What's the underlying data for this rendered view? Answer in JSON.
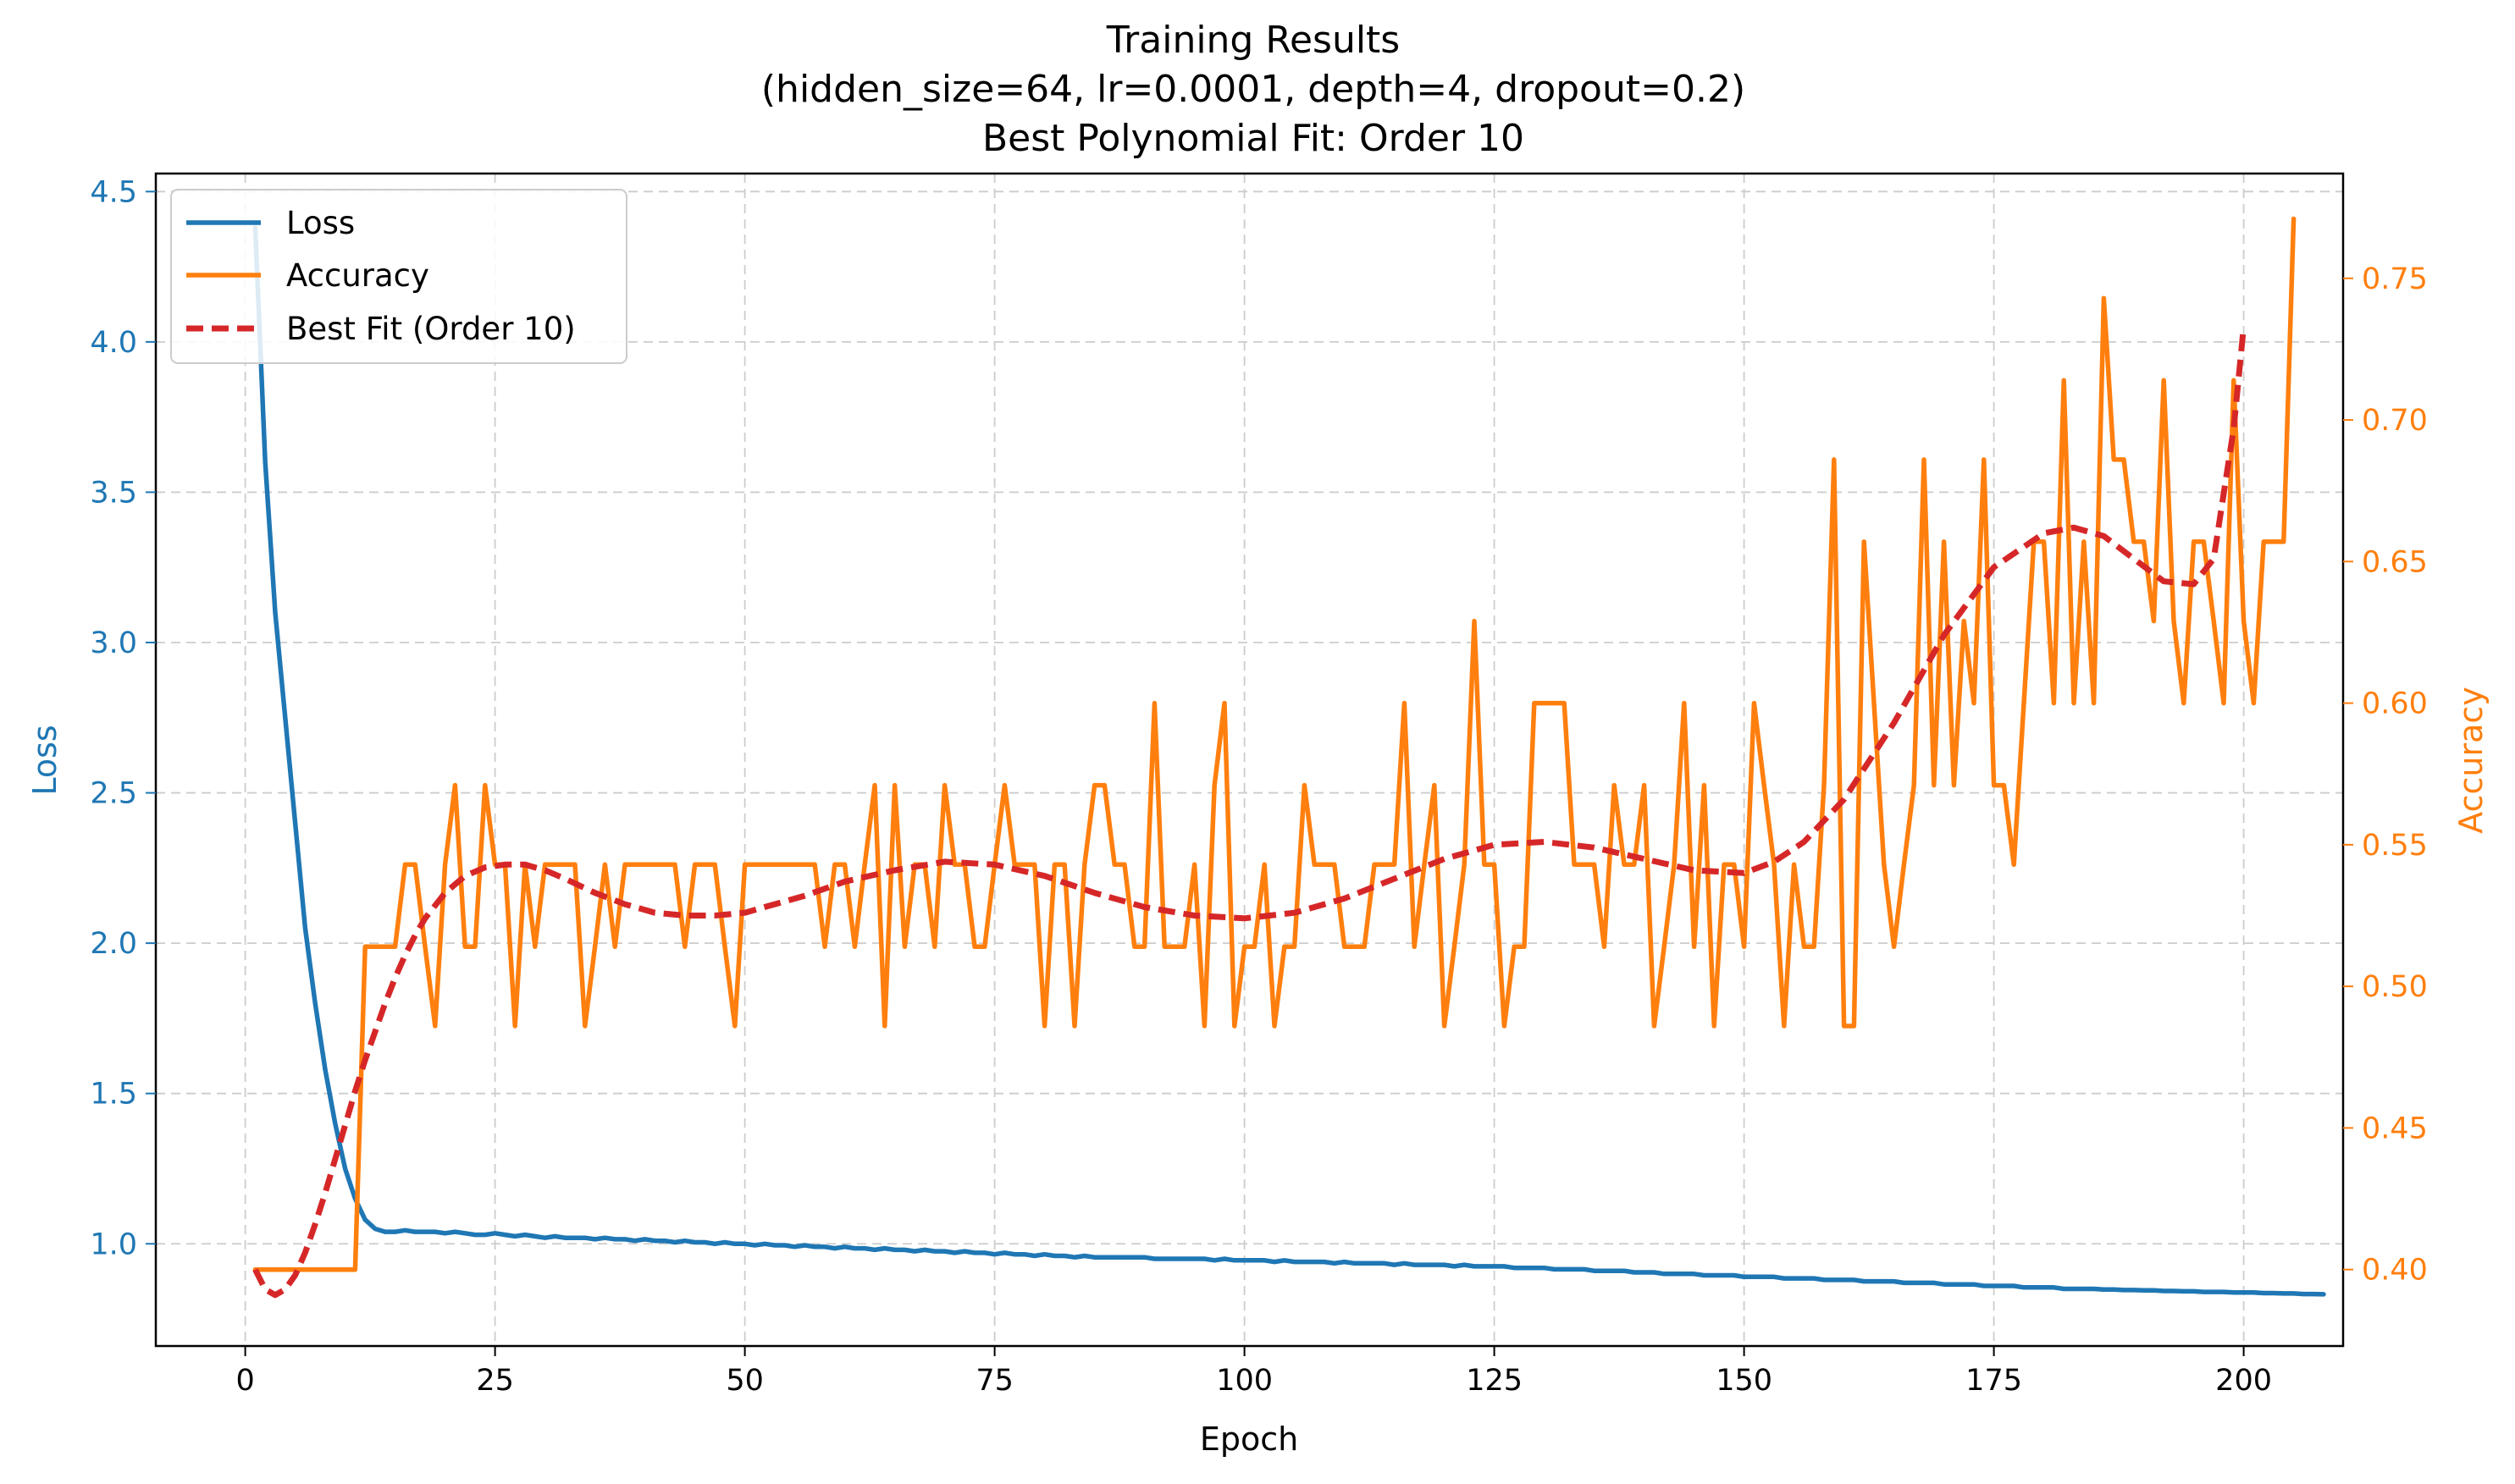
{
  "chart_data": {
    "type": "line",
    "title_lines": [
      "Training Results",
      "(hidden_size=64, lr=0.0001, depth=4, dropout=0.2)",
      "Best Polynomial Fit: Order 10"
    ],
    "xlabel": "Epoch",
    "ylabel_left": "Loss",
    "ylabel_right": "Accuracy",
    "xlim": [
      -8.95,
      209.95
    ],
    "ylim_left": [
      0.66,
      4.56
    ],
    "ylim_right": [
      0.373,
      0.787
    ],
    "x_ticks": [
      0,
      25,
      50,
      75,
      100,
      125,
      150,
      175,
      200
    ],
    "y_ticks_left": [
      1.0,
      1.5,
      2.0,
      2.5,
      3.0,
      3.5,
      4.0,
      4.5
    ],
    "y_ticks_left_labels": [
      "1.0",
      "1.5",
      "2.0",
      "2.5",
      "3.0",
      "3.5",
      "4.0",
      "4.5"
    ],
    "y_ticks_right": [
      0.4,
      0.45,
      0.5,
      0.55,
      0.6,
      0.65,
      0.7,
      0.75
    ],
    "y_ticks_right_labels": [
      "0.40",
      "0.45",
      "0.50",
      "0.55",
      "0.60",
      "0.65",
      "0.70",
      "0.75"
    ],
    "grid": true,
    "legend_position": "top-left",
    "colors": {
      "loss": "#1f77b4",
      "accuracy": "#ff7f0e",
      "fit": "#d62728",
      "grid": "#cccccc"
    },
    "series": [
      {
        "name": "Loss",
        "axis": "left",
        "style": "solid",
        "x_start": 1,
        "values": [
          4.38,
          3.6,
          3.1,
          2.75,
          2.4,
          2.05,
          1.8,
          1.58,
          1.4,
          1.25,
          1.15,
          1.08,
          1.05,
          1.04,
          1.04,
          1.045,
          1.04,
          1.04,
          1.04,
          1.035,
          1.04,
          1.035,
          1.03,
          1.03,
          1.035,
          1.03,
          1.025,
          1.03,
          1.025,
          1.02,
          1.025,
          1.02,
          1.02,
          1.02,
          1.015,
          1.02,
          1.015,
          1.015,
          1.01,
          1.015,
          1.01,
          1.01,
          1.005,
          1.01,
          1.005,
          1.005,
          1.0,
          1.005,
          1.0,
          1.0,
          0.995,
          1.0,
          0.995,
          0.995,
          0.99,
          0.995,
          0.99,
          0.99,
          0.985,
          0.99,
          0.985,
          0.985,
          0.98,
          0.985,
          0.98,
          0.98,
          0.975,
          0.98,
          0.975,
          0.975,
          0.97,
          0.975,
          0.97,
          0.97,
          0.965,
          0.97,
          0.965,
          0.965,
          0.96,
          0.965,
          0.96,
          0.96,
          0.955,
          0.96,
          0.955,
          0.955,
          0.955,
          0.955,
          0.955,
          0.955,
          0.95,
          0.95,
          0.95,
          0.95,
          0.95,
          0.95,
          0.945,
          0.95,
          0.945,
          0.945,
          0.945,
          0.945,
          0.94,
          0.945,
          0.94,
          0.94,
          0.94,
          0.94,
          0.935,
          0.94,
          0.935,
          0.935,
          0.935,
          0.935,
          0.93,
          0.935,
          0.93,
          0.93,
          0.93,
          0.93,
          0.925,
          0.93,
          0.925,
          0.925,
          0.925,
          0.925,
          0.92,
          0.92,
          0.92,
          0.92,
          0.915,
          0.915,
          0.915,
          0.915,
          0.91,
          0.91,
          0.91,
          0.91,
          0.905,
          0.905,
          0.905,
          0.9,
          0.9,
          0.9,
          0.9,
          0.895,
          0.895,
          0.895,
          0.895,
          0.89,
          0.89,
          0.89,
          0.89,
          0.885,
          0.885,
          0.885,
          0.885,
          0.88,
          0.88,
          0.88,
          0.88,
          0.875,
          0.875,
          0.875,
          0.875,
          0.87,
          0.87,
          0.87,
          0.87,
          0.865,
          0.865,
          0.865,
          0.865,
          0.86,
          0.86,
          0.86,
          0.86,
          0.855,
          0.855,
          0.855,
          0.855,
          0.85,
          0.85,
          0.85,
          0.85,
          0.848,
          0.848,
          0.846,
          0.846,
          0.845,
          0.845,
          0.843,
          0.843,
          0.842,
          0.842,
          0.84,
          0.84,
          0.84,
          0.838,
          0.838,
          0.838,
          0.836,
          0.836,
          0.835,
          0.835,
          0.833,
          0.833,
          0.832
        ]
      },
      {
        "name": "Accuracy",
        "axis": "right",
        "style": "solid",
        "x_start": 1,
        "values": [
          0.4,
          0.4,
          0.4,
          0.4,
          0.4,
          0.4,
          0.4,
          0.4,
          0.4,
          0.4,
          0.4,
          0.514,
          0.514,
          0.514,
          0.514,
          0.543,
          0.543,
          0.514,
          0.486,
          0.543,
          0.571,
          0.514,
          0.514,
          0.571,
          0.543,
          0.543,
          0.486,
          0.543,
          0.514,
          0.543,
          0.543,
          0.543,
          0.543,
          0.486,
          0.514,
          0.543,
          0.514,
          0.543,
          0.543,
          0.543,
          0.543,
          0.543,
          0.543,
          0.514,
          0.543,
          0.543,
          0.543,
          0.514,
          0.486,
          0.543,
          0.543,
          0.543,
          0.543,
          0.543,
          0.543,
          0.543,
          0.543,
          0.514,
          0.543,
          0.543,
          0.514,
          0.543,
          0.571,
          0.486,
          0.571,
          0.514,
          0.543,
          0.543,
          0.514,
          0.571,
          0.543,
          0.543,
          0.514,
          0.514,
          0.543,
          0.571,
          0.543,
          0.543,
          0.543,
          0.486,
          0.543,
          0.543,
          0.486,
          0.543,
          0.571,
          0.571,
          0.543,
          0.543,
          0.514,
          0.514,
          0.6,
          0.514,
          0.514,
          0.514,
          0.543,
          0.486,
          0.571,
          0.6,
          0.486,
          0.514,
          0.514,
          0.543,
          0.486,
          0.514,
          0.514,
          0.571,
          0.543,
          0.543,
          0.543,
          0.514,
          0.514,
          0.514,
          0.543,
          0.543,
          0.543,
          0.6,
          0.514,
          0.543,
          0.571,
          0.486,
          0.514,
          0.543,
          0.629,
          0.543,
          0.543,
          0.486,
          0.514,
          0.514,
          0.6,
          0.6,
          0.6,
          0.6,
          0.543,
          0.543,
          0.543,
          0.514,
          0.571,
          0.543,
          0.543,
          0.571,
          0.486,
          0.514,
          0.543,
          0.6,
          0.514,
          0.571,
          0.486,
          0.543,
          0.543,
          0.514,
          0.6,
          0.571,
          0.543,
          0.486,
          0.543,
          0.514,
          0.514,
          0.571,
          0.686,
          0.486,
          0.486,
          0.657,
          0.6,
          0.543,
          0.514,
          0.543,
          0.571,
          0.686,
          0.571,
          0.657,
          0.571,
          0.629,
          0.6,
          0.686,
          0.571,
          0.571,
          0.543,
          0.6,
          0.657,
          0.657,
          0.6,
          0.714,
          0.6,
          0.657,
          0.6,
          0.743,
          0.686,
          0.686,
          0.657,
          0.657,
          0.629,
          0.714,
          0.629,
          0.6,
          0.657,
          0.657,
          0.629,
          0.6,
          0.714,
          0.629,
          0.6,
          0.657,
          0.657,
          0.657,
          0.771
        ]
      },
      {
        "name": "Best Fit (Order 10)",
        "axis": "right",
        "style": "dashed",
        "x": [
          1,
          2,
          3,
          4,
          5,
          6,
          7,
          8,
          9,
          10,
          11,
          12,
          13,
          14,
          15,
          16,
          17,
          18,
          20,
          22,
          24,
          26,
          28,
          30,
          32,
          35,
          38,
          41,
          44,
          47,
          50,
          53,
          56,
          60,
          65,
          70,
          75,
          80,
          85,
          90,
          95,
          100,
          105,
          110,
          115,
          120,
          125,
          130,
          135,
          140,
          145,
          150,
          153,
          156,
          160,
          165,
          170,
          175,
          180,
          183,
          186,
          189,
          192,
          195,
          197,
          199,
          200
        ],
        "values": [
          0.4,
          0.393,
          0.391,
          0.393,
          0.398,
          0.406,
          0.416,
          0.427,
          0.439,
          0.451,
          0.463,
          0.474,
          0.484,
          0.494,
          0.503,
          0.511,
          0.518,
          0.524,
          0.533,
          0.539,
          0.542,
          0.543,
          0.543,
          0.541,
          0.538,
          0.533,
          0.529,
          0.526,
          0.525,
          0.525,
          0.526,
          0.529,
          0.532,
          0.537,
          0.541,
          0.544,
          0.543,
          0.539,
          0.533,
          0.528,
          0.525,
          0.524,
          0.526,
          0.531,
          0.538,
          0.545,
          0.55,
          0.551,
          0.549,
          0.545,
          0.541,
          0.54,
          0.544,
          0.551,
          0.566,
          0.593,
          0.624,
          0.648,
          0.66,
          0.662,
          0.659,
          0.651,
          0.643,
          0.642,
          0.651,
          0.697,
          0.733
        ]
      }
    ]
  }
}
